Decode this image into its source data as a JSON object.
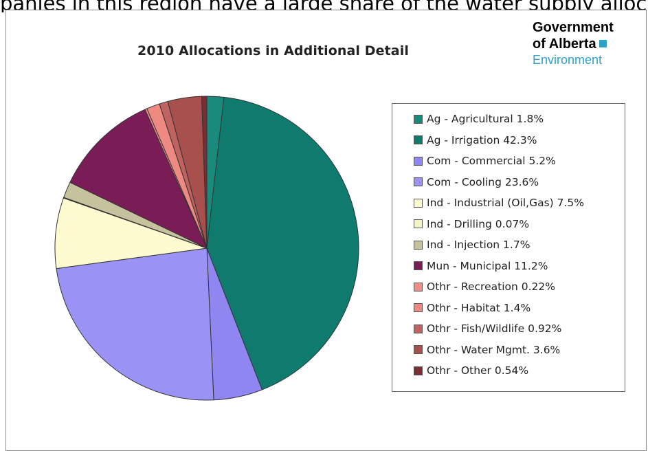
{
  "top_caption": "panies in this region have a large share of the water supply allocation in this region.",
  "logo": {
    "line1": "Government",
    "line2": "of Alberta",
    "line3": "Environment"
  },
  "chart_data": {
    "type": "pie",
    "title": "2010 Allocations in Additional Detail",
    "legend_position": "right",
    "slices": [
      {
        "label": "Ag - Agricultural 1.8%",
        "value": 1.8,
        "color": "#1a8a7c"
      },
      {
        "label": "Ag - Irrigation 42.3%",
        "value": 42.3,
        "color": "#0f7b6f"
      },
      {
        "label": "Com - Commercial 5.2%",
        "value": 5.2,
        "color": "#8f86f2"
      },
      {
        "label": "Com - Cooling 23.6%",
        "value": 23.6,
        "color": "#9b92f5"
      },
      {
        "label": "Ind - Industrial (Oil,Gas) 7.5%",
        "value": 7.5,
        "color": "#fdfbcf"
      },
      {
        "label": "Ind - Drilling 0.07%",
        "value": 0.07,
        "color": "#f4f3c2"
      },
      {
        "label": "Ind - Injection 1.7%",
        "value": 1.7,
        "color": "#c6c29e"
      },
      {
        "label": "Mun - Municipal 11.2%",
        "value": 11.2,
        "color": "#7a1d57"
      },
      {
        "label": "Othr - Recreation 0.22%",
        "value": 0.22,
        "color": "#f28c86"
      },
      {
        "label": "Othr - Habitat 1.4%",
        "value": 1.4,
        "color": "#ef8a82"
      },
      {
        "label": "Othr - Fish/Wildlife 0.92%",
        "value": 0.92,
        "color": "#c0625f"
      },
      {
        "label": "Othr - Water Mgmt. 3.6%",
        "value": 3.6,
        "color": "#a8504d"
      },
      {
        "label": "Othr - Other 0.54%",
        "value": 0.54,
        "color": "#7b2e33"
      }
    ]
  }
}
